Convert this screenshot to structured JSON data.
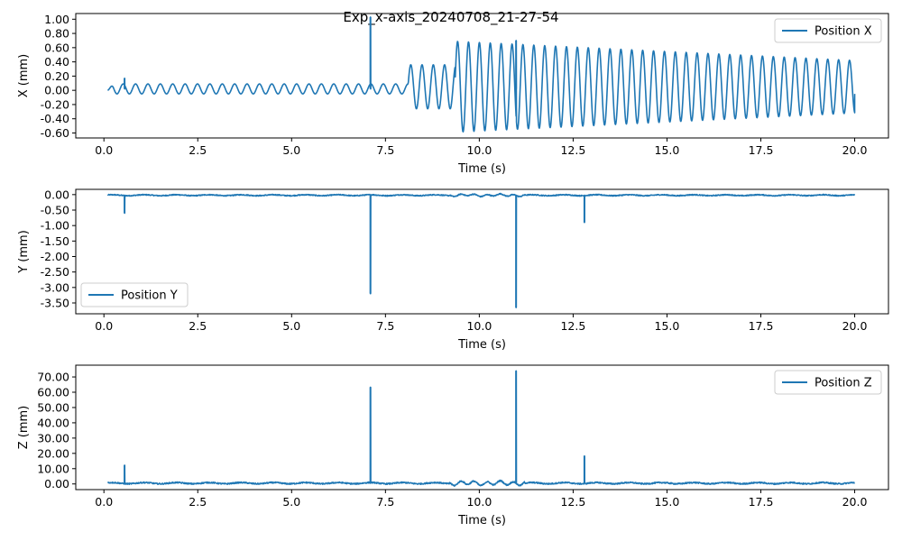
{
  "figure_title": "Exp_x-axis_20240708_21-27-54",
  "chart_data": [
    {
      "type": "line",
      "title": "",
      "xlabel": "Time (s)",
      "ylabel": "X (mm)",
      "xlim": [
        -0.75,
        20.9
      ],
      "ylim": [
        -0.67,
        1.08
      ],
      "xticks": [
        "0.0",
        "2.5",
        "5.0",
        "7.5",
        "10.0",
        "12.5",
        "15.0",
        "17.5",
        "20.0"
      ],
      "xtick_values": [
        0,
        2.5,
        5,
        7.5,
        10,
        12.5,
        15,
        17.5,
        20
      ],
      "yticks": [
        "1.00",
        "0.80",
        "0.60",
        "0.40",
        "0.20",
        "0.00",
        "-0.20",
        "-0.40",
        "-0.60"
      ],
      "ytick_values": [
        1.0,
        0.8,
        0.6,
        0.4,
        0.2,
        0.0,
        -0.2,
        -0.4,
        -0.6
      ],
      "legend": "Position X",
      "legend_loc": "upper right",
      "series": [
        {
          "name": "Position X",
          "color": "#1f77b4",
          "x_range": [
            0.1,
            20.0
          ],
          "oscillation": [
            {
              "t_start": 0.1,
              "t_end": 8.1,
              "period": 0.33,
              "amplitude": 0.07,
              "offset": 0.02
            },
            {
              "t_start": 8.1,
              "t_end": 9.35,
              "period": 0.3,
              "amplitude": 0.31,
              "offset": 0.05
            },
            {
              "t_start": 9.35,
              "t_end": 20.0,
              "period": 0.29,
              "amplitude_start": 0.64,
              "amplitude_end": 0.37,
              "offset": 0.05
            }
          ],
          "spikes": [
            {
              "x": 0.55,
              "y": 0.17
            },
            {
              "x": 7.1,
              "y": 1.03
            },
            {
              "x": 10.98,
              "y": 0.7
            }
          ],
          "end_point": {
            "x": 20.0,
            "y": -0.05
          }
        }
      ]
    },
    {
      "type": "line",
      "title": "",
      "xlabel": "Time (s)",
      "ylabel": "Y (mm)",
      "xlim": [
        -0.75,
        20.9
      ],
      "ylim": [
        -3.85,
        0.17
      ],
      "xticks": [
        "0.0",
        "2.5",
        "5.0",
        "7.5",
        "10.0",
        "12.5",
        "15.0",
        "17.5",
        "20.0"
      ],
      "xtick_values": [
        0,
        2.5,
        5,
        7.5,
        10,
        12.5,
        15,
        17.5,
        20
      ],
      "yticks": [
        "0.00",
        "-0.50",
        "-1.00",
        "-1.50",
        "-2.00",
        "-2.50",
        "-3.00",
        "-3.50"
      ],
      "ytick_values": [
        0,
        -0.5,
        -1.0,
        -1.5,
        -2.0,
        -2.5,
        -3.0,
        -3.5
      ],
      "legend": "Position Y",
      "legend_loc": "lower left",
      "series": [
        {
          "name": "Position Y",
          "color": "#1f77b4",
          "x_range": [
            0.1,
            20.0
          ],
          "baseline": -0.02,
          "noise_amplitude": 0.03,
          "spikes": [
            {
              "x": 0.55,
              "y": -0.6
            },
            {
              "x": 7.1,
              "y": -3.2
            },
            {
              "x": 10.98,
              "y": -3.65
            },
            {
              "x": 12.8,
              "y": -0.9
            }
          ]
        }
      ]
    },
    {
      "type": "line",
      "title": "",
      "xlabel": "Time (s)",
      "ylabel": "Z (mm)",
      "xlim": [
        -0.75,
        20.9
      ],
      "ylim": [
        -3.7,
        77.7
      ],
      "xticks": [
        "0.0",
        "2.5",
        "5.0",
        "7.5",
        "10.0",
        "12.5",
        "15.0",
        "17.5",
        "20.0"
      ],
      "xtick_values": [
        0,
        2.5,
        5,
        7.5,
        10,
        12.5,
        15,
        17.5,
        20
      ],
      "yticks": [
        "70.00",
        "60.00",
        "50.00",
        "40.00",
        "30.00",
        "20.00",
        "10.00",
        "0.00"
      ],
      "ytick_values": [
        70,
        60,
        50,
        40,
        30,
        20,
        10,
        0
      ],
      "legend": "Position Z",
      "legend_loc": "upper right",
      "series": [
        {
          "name": "Position Z",
          "color": "#1f77b4",
          "x_range": [
            0.1,
            20.0
          ],
          "baseline": 0.5,
          "noise_amplitude": 0.8,
          "spikes": [
            {
              "x": 0.55,
              "y": 12.3
            },
            {
              "x": 7.1,
              "y": 63.3
            },
            {
              "x": 10.98,
              "y": 74.0
            },
            {
              "x": 12.8,
              "y": 18.3
            }
          ]
        }
      ]
    }
  ]
}
